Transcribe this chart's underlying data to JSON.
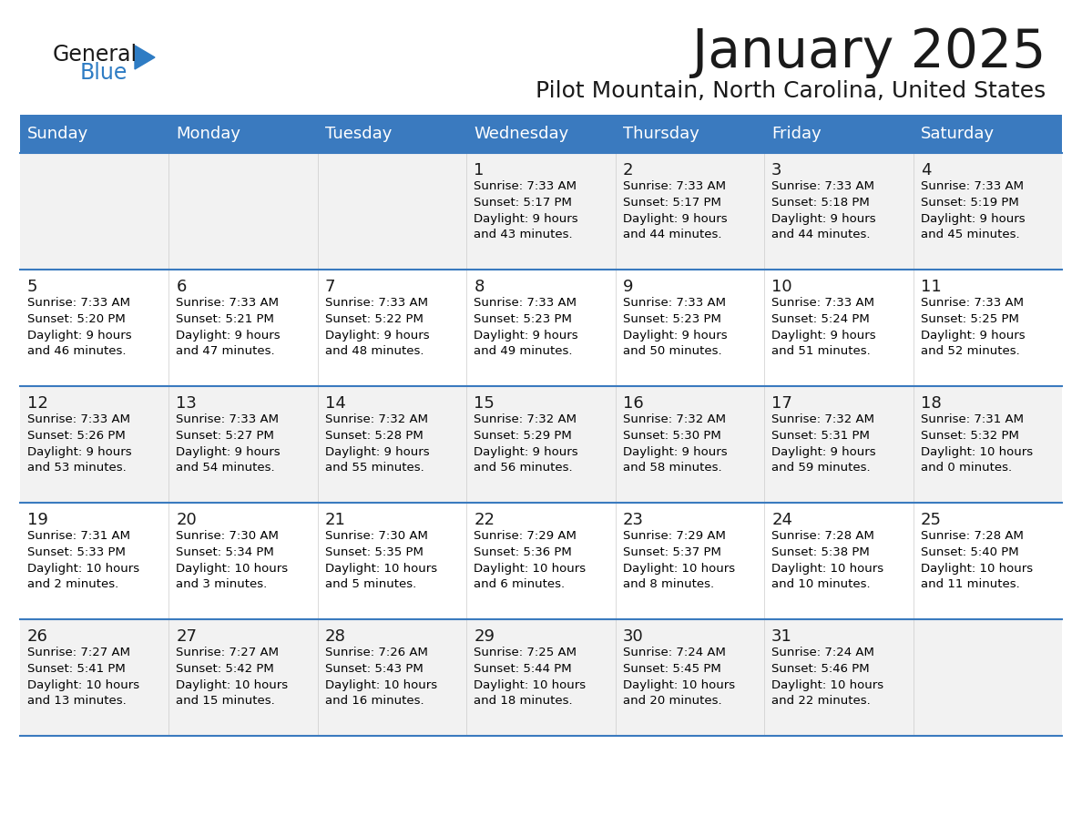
{
  "title": "January 2025",
  "subtitle": "Pilot Mountain, North Carolina, United States",
  "days_of_week": [
    "Sunday",
    "Monday",
    "Tuesday",
    "Wednesday",
    "Thursday",
    "Friday",
    "Saturday"
  ],
  "header_bg": "#3a7abf",
  "header_text": "#ffffff",
  "row_bg_odd": "#f2f2f2",
  "row_bg_even": "#ffffff",
  "cell_text": "#000000",
  "day_num_color": "#1a1a1a",
  "border_color": "#3a7abf",
  "title_color": "#1a1a1a",
  "subtitle_color": "#1a1a1a",
  "logo_general_color": "#1a1a1a",
  "logo_blue_color": "#2e7cc4",
  "weeks": [
    [
      {
        "day": null,
        "sunrise": null,
        "sunset": null,
        "daylight": null
      },
      {
        "day": null,
        "sunrise": null,
        "sunset": null,
        "daylight": null
      },
      {
        "day": null,
        "sunrise": null,
        "sunset": null,
        "daylight": null
      },
      {
        "day": 1,
        "sunrise": "7:33 AM",
        "sunset": "5:17 PM",
        "daylight": "9 hours\nand 43 minutes."
      },
      {
        "day": 2,
        "sunrise": "7:33 AM",
        "sunset": "5:17 PM",
        "daylight": "9 hours\nand 44 minutes."
      },
      {
        "day": 3,
        "sunrise": "7:33 AM",
        "sunset": "5:18 PM",
        "daylight": "9 hours\nand 44 minutes."
      },
      {
        "day": 4,
        "sunrise": "7:33 AM",
        "sunset": "5:19 PM",
        "daylight": "9 hours\nand 45 minutes."
      }
    ],
    [
      {
        "day": 5,
        "sunrise": "7:33 AM",
        "sunset": "5:20 PM",
        "daylight": "9 hours\nand 46 minutes."
      },
      {
        "day": 6,
        "sunrise": "7:33 AM",
        "sunset": "5:21 PM",
        "daylight": "9 hours\nand 47 minutes."
      },
      {
        "day": 7,
        "sunrise": "7:33 AM",
        "sunset": "5:22 PM",
        "daylight": "9 hours\nand 48 minutes."
      },
      {
        "day": 8,
        "sunrise": "7:33 AM",
        "sunset": "5:23 PM",
        "daylight": "9 hours\nand 49 minutes."
      },
      {
        "day": 9,
        "sunrise": "7:33 AM",
        "sunset": "5:23 PM",
        "daylight": "9 hours\nand 50 minutes."
      },
      {
        "day": 10,
        "sunrise": "7:33 AM",
        "sunset": "5:24 PM",
        "daylight": "9 hours\nand 51 minutes."
      },
      {
        "day": 11,
        "sunrise": "7:33 AM",
        "sunset": "5:25 PM",
        "daylight": "9 hours\nand 52 minutes."
      }
    ],
    [
      {
        "day": 12,
        "sunrise": "7:33 AM",
        "sunset": "5:26 PM",
        "daylight": "9 hours\nand 53 minutes."
      },
      {
        "day": 13,
        "sunrise": "7:33 AM",
        "sunset": "5:27 PM",
        "daylight": "9 hours\nand 54 minutes."
      },
      {
        "day": 14,
        "sunrise": "7:32 AM",
        "sunset": "5:28 PM",
        "daylight": "9 hours\nand 55 minutes."
      },
      {
        "day": 15,
        "sunrise": "7:32 AM",
        "sunset": "5:29 PM",
        "daylight": "9 hours\nand 56 minutes."
      },
      {
        "day": 16,
        "sunrise": "7:32 AM",
        "sunset": "5:30 PM",
        "daylight": "9 hours\nand 58 minutes."
      },
      {
        "day": 17,
        "sunrise": "7:32 AM",
        "sunset": "5:31 PM",
        "daylight": "9 hours\nand 59 minutes."
      },
      {
        "day": 18,
        "sunrise": "7:31 AM",
        "sunset": "5:32 PM",
        "daylight": "10 hours\nand 0 minutes."
      }
    ],
    [
      {
        "day": 19,
        "sunrise": "7:31 AM",
        "sunset": "5:33 PM",
        "daylight": "10 hours\nand 2 minutes."
      },
      {
        "day": 20,
        "sunrise": "7:30 AM",
        "sunset": "5:34 PM",
        "daylight": "10 hours\nand 3 minutes."
      },
      {
        "day": 21,
        "sunrise": "7:30 AM",
        "sunset": "5:35 PM",
        "daylight": "10 hours\nand 5 minutes."
      },
      {
        "day": 22,
        "sunrise": "7:29 AM",
        "sunset": "5:36 PM",
        "daylight": "10 hours\nand 6 minutes."
      },
      {
        "day": 23,
        "sunrise": "7:29 AM",
        "sunset": "5:37 PM",
        "daylight": "10 hours\nand 8 minutes."
      },
      {
        "day": 24,
        "sunrise": "7:28 AM",
        "sunset": "5:38 PM",
        "daylight": "10 hours\nand 10 minutes."
      },
      {
        "day": 25,
        "sunrise": "7:28 AM",
        "sunset": "5:40 PM",
        "daylight": "10 hours\nand 11 minutes."
      }
    ],
    [
      {
        "day": 26,
        "sunrise": "7:27 AM",
        "sunset": "5:41 PM",
        "daylight": "10 hours\nand 13 minutes."
      },
      {
        "day": 27,
        "sunrise": "7:27 AM",
        "sunset": "5:42 PM",
        "daylight": "10 hours\nand 15 minutes."
      },
      {
        "day": 28,
        "sunrise": "7:26 AM",
        "sunset": "5:43 PM",
        "daylight": "10 hours\nand 16 minutes."
      },
      {
        "day": 29,
        "sunrise": "7:25 AM",
        "sunset": "5:44 PM",
        "daylight": "10 hours\nand 18 minutes."
      },
      {
        "day": 30,
        "sunrise": "7:24 AM",
        "sunset": "5:45 PM",
        "daylight": "10 hours\nand 20 minutes."
      },
      {
        "day": 31,
        "sunrise": "7:24 AM",
        "sunset": "5:46 PM",
        "daylight": "10 hours\nand 22 minutes."
      },
      {
        "day": null,
        "sunrise": null,
        "sunset": null,
        "daylight": null
      }
    ]
  ]
}
